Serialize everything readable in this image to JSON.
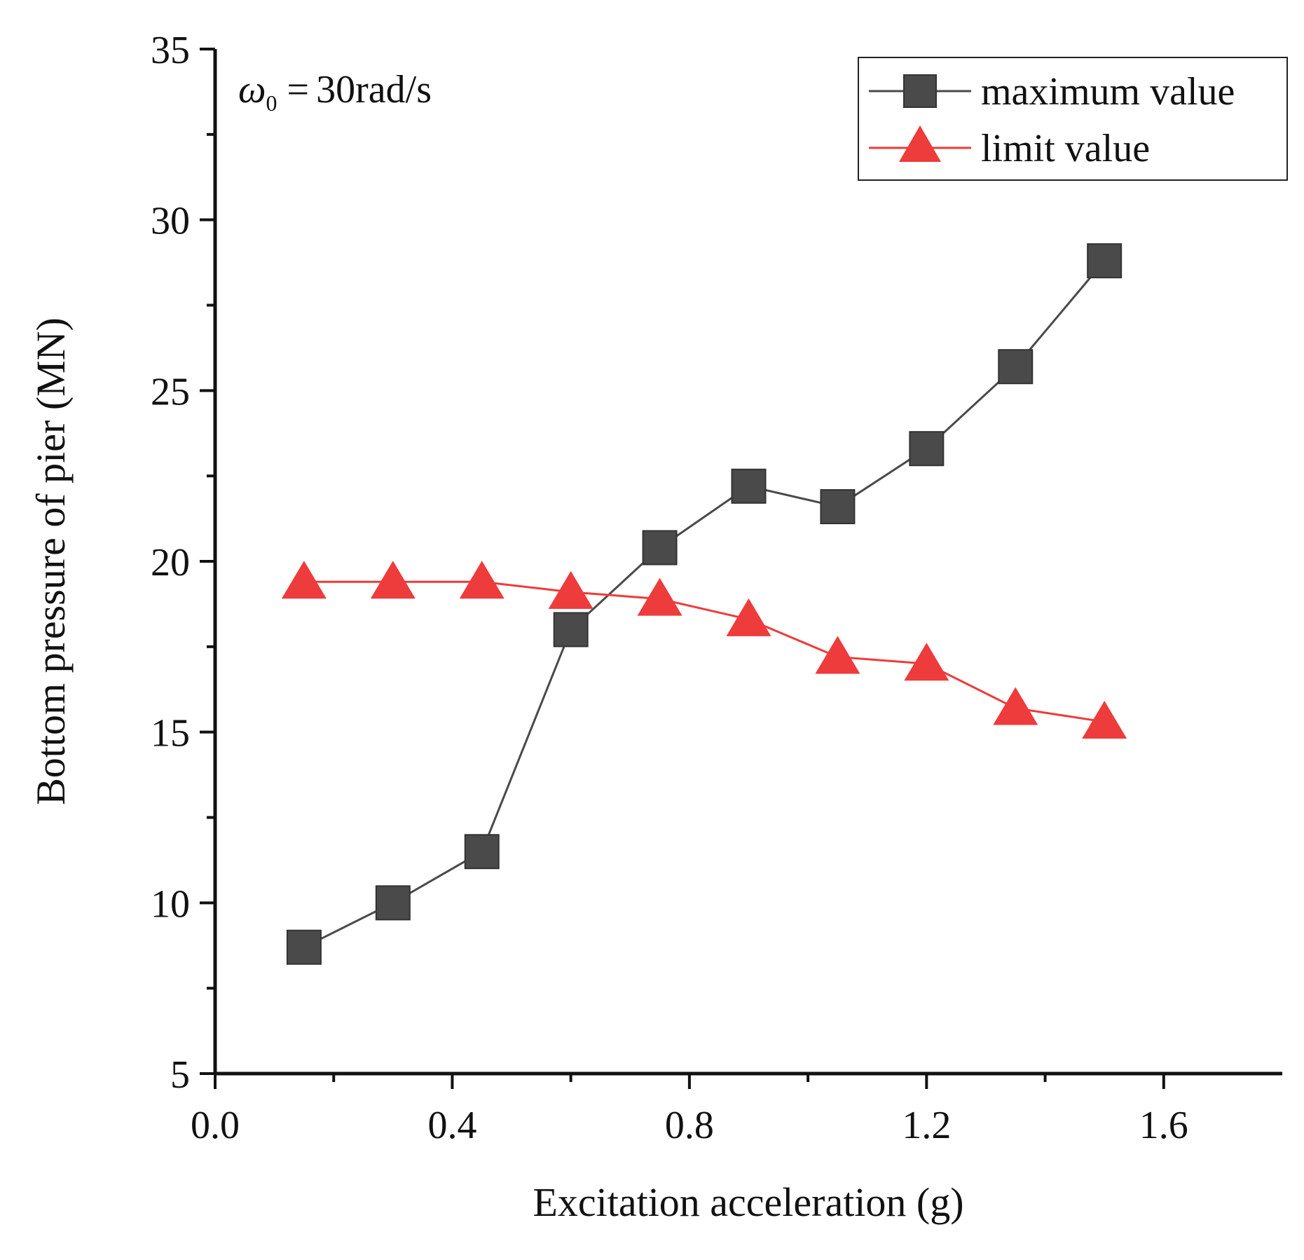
{
  "chart_data": {
    "type": "line",
    "title": "",
    "xlabel": "Excitation acceleration (g)",
    "ylabel": "Bottom pressure of pier (MN)",
    "xlim": [
      0.0,
      1.8
    ],
    "ylim": [
      5,
      35
    ],
    "x_major_ticks": [
      0.0,
      0.4,
      0.8,
      1.2,
      1.6
    ],
    "x_tick_labels": [
      "0.0",
      "0.4",
      "0.8",
      "1.2",
      "1.6"
    ],
    "x_minor_ticks": [
      0.2,
      0.6,
      1.0,
      1.4
    ],
    "y_major_ticks": [
      5,
      10,
      15,
      20,
      25,
      30,
      35
    ],
    "y_tick_labels": [
      "5",
      "10",
      "15",
      "20",
      "25",
      "30",
      "35"
    ],
    "y_minor_ticks": [
      7.5,
      12.5,
      17.5,
      22.5,
      27.5,
      32.5
    ],
    "grid": false,
    "legend_position": "top-right",
    "annotation": {
      "symbol": "ω",
      "subscript": "0",
      "equals": "=",
      "value": "30rad/s"
    },
    "x": [
      0.15,
      0.3,
      0.45,
      0.6,
      0.75,
      0.9,
      1.05,
      1.2,
      1.35,
      1.5
    ],
    "series": [
      {
        "name": "maximum value",
        "marker": "square",
        "color": "#4a4a4a",
        "values": [
          8.7,
          10.0,
          11.5,
          18.0,
          20.4,
          22.2,
          21.6,
          23.3,
          25.7,
          28.8
        ]
      },
      {
        "name": "limit value",
        "marker": "triangle",
        "color": "#ee3b3b",
        "values": [
          19.4,
          19.4,
          19.4,
          19.1,
          18.9,
          18.3,
          17.2,
          17.0,
          15.7,
          15.3
        ]
      }
    ]
  }
}
